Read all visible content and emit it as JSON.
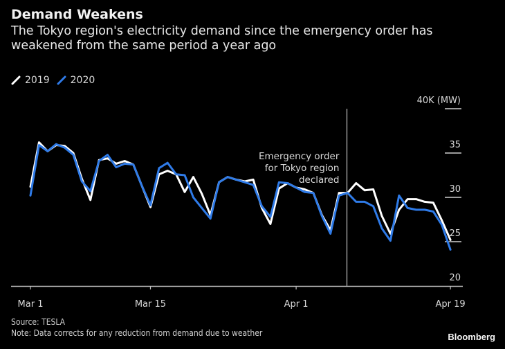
{
  "header": {
    "title": "Demand Weakens",
    "subtitle": "The Tokyo region's electricity demand since the emergency order has weakened from the same period a year ago"
  },
  "legend": [
    {
      "label": "2019",
      "color": "#ffffff",
      "icon": "line-swatch-icon"
    },
    {
      "label": "2020",
      "color": "#2f7be8",
      "icon": "line-swatch-icon"
    }
  ],
  "footer": {
    "source": "Source: TESLA",
    "note": "Note: Data corrects for any reduction from demand due to weather",
    "logo": "Bloomberg"
  },
  "chart_data": {
    "type": "line",
    "title": "Demand Weakens",
    "subtitle": "The Tokyo region's electricity demand since the emergency order has weakened from the same period a year ago",
    "xlabel": "",
    "ylabel": "40K (MW)",
    "ylim": [
      20,
      40
    ],
    "yticks": [
      20,
      25,
      30,
      35,
      40
    ],
    "ytick_labels": [
      "20",
      "25",
      "30",
      "35",
      "40K (MW)"
    ],
    "xtick_labels": [
      {
        "label": "Mar 1",
        "day": 0
      },
      {
        "label": "Mar 15",
        "day": 14
      },
      {
        "label": "Apr 1",
        "day": 31
      },
      {
        "label": "Apr 19",
        "day": 49
      }
    ],
    "x": [
      "Mar 1",
      "Mar 2",
      "Mar 3",
      "Mar 4",
      "Mar 5",
      "Mar 6",
      "Mar 7",
      "Mar 8",
      "Mar 9",
      "Mar 10",
      "Mar 11",
      "Mar 12",
      "Mar 13",
      "Mar 14",
      "Mar 15",
      "Mar 16",
      "Mar 17",
      "Mar 18",
      "Mar 19",
      "Mar 20",
      "Mar 21",
      "Mar 22",
      "Mar 23",
      "Mar 24",
      "Mar 25",
      "Mar 26",
      "Mar 27",
      "Mar 28",
      "Mar 29",
      "Mar 30",
      "Mar 31",
      "Apr 1",
      "Apr 2",
      "Apr 3",
      "Apr 4",
      "Apr 5",
      "Apr 6",
      "Apr 7",
      "Apr 8",
      "Apr 9",
      "Apr 10",
      "Apr 11",
      "Apr 12",
      "Apr 13",
      "Apr 14",
      "Apr 15",
      "Apr 16",
      "Apr 17",
      "Apr 18",
      "Apr 19"
    ],
    "series": [
      {
        "name": "2019",
        "color": "#ffffff",
        "values": [
          31.2,
          36.2,
          35.2,
          35.9,
          35.8,
          35.0,
          32.1,
          29.7,
          34.2,
          34.4,
          33.8,
          34.1,
          33.7,
          31.3,
          28.9,
          32.6,
          33.0,
          32.6,
          30.6,
          32.3,
          30.4,
          28.0,
          31.7,
          32.3,
          32.0,
          31.8,
          32.0,
          28.8,
          27.0,
          31.0,
          31.6,
          31.1,
          30.9,
          30.5,
          28.0,
          26.3,
          30.5,
          30.5,
          31.6,
          30.8,
          30.9,
          27.9,
          25.9,
          28.6,
          29.8,
          29.8,
          29.5,
          29.4,
          27.4,
          25.2
        ]
      },
      {
        "name": "2020",
        "color": "#2f7be8",
        "values": [
          30.2,
          35.9,
          35.2,
          36.0,
          35.6,
          34.8,
          31.8,
          30.7,
          34.1,
          34.8,
          33.4,
          33.8,
          33.7,
          31.3,
          29.1,
          33.3,
          33.9,
          32.6,
          32.5,
          30.0,
          28.8,
          27.6,
          31.7,
          32.3,
          32.0,
          31.7,
          31.4,
          29.0,
          27.8,
          31.7,
          31.6,
          31.1,
          30.6,
          30.5,
          27.9,
          25.9,
          30.2,
          30.5,
          29.5,
          29.5,
          29.0,
          26.5,
          25.1,
          30.2,
          28.8,
          28.6,
          28.6,
          28.4,
          26.9,
          24.1
        ]
      }
    ],
    "annotations": [
      {
        "text_lines": [
          "Emergency order",
          "for Tokyo region",
          "declared"
        ],
        "x": "Apr 7",
        "type": "vertical-line"
      }
    ],
    "grid": false,
    "legend_position": "top-left"
  }
}
